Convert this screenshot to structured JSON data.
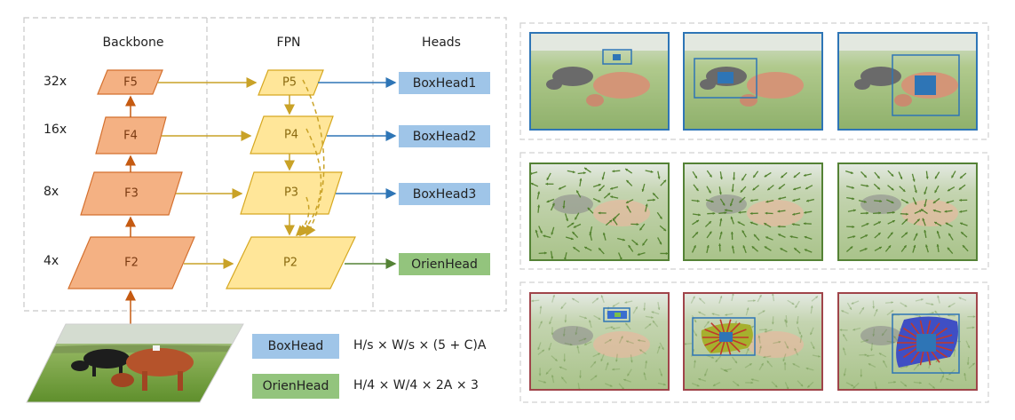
{
  "columns": {
    "backbone": "Backbone",
    "fpn": "FPN",
    "heads": "Heads"
  },
  "scales": [
    "32x",
    "16x",
    "8x",
    "4x"
  ],
  "backbone_maps": [
    "F5",
    "F4",
    "F3",
    "F2"
  ],
  "fpn_maps": [
    "P5",
    "P4",
    "P3",
    "P2"
  ],
  "heads": [
    "BoxHead1",
    "BoxHead2",
    "BoxHead3",
    "OrienHead"
  ],
  "legend": {
    "boxhead": {
      "label": "BoxHead",
      "formula": "H/s × W/s × (5 + C)A"
    },
    "orienhead": {
      "label": "OrienHead",
      "formula": "H/4 × W/4 × 2A × 3"
    }
  },
  "colors": {
    "backbone_fill": "#f4b183",
    "backbone_stroke": "#d4702e",
    "fpn_fill": "#ffe699",
    "fpn_stroke": "#d6a820",
    "boxhead": "#9fc5e8",
    "orienhead": "#93c47d",
    "arrow_blue": "#2e75b6",
    "arrow_green": "#548235",
    "row_box": "#2e75b6",
    "row_vector": "#548235",
    "row_overlay": "#a0444a"
  },
  "panel_rows": [
    "box-detection-row",
    "orientation-vector-row",
    "combined-overlay-row"
  ]
}
